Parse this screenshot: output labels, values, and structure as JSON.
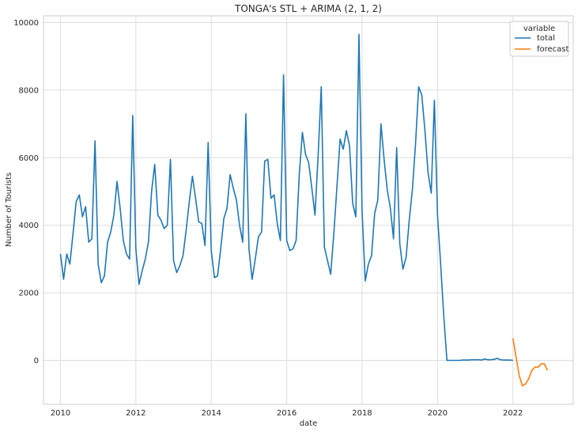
{
  "chart_data": {
    "type": "line",
    "title": "TONGA's STL + ARIMA (2, 1, 2)",
    "xlabel": "date",
    "ylabel": "Number of Tourists",
    "xlim": [
      2009.55,
      2023.6
    ],
    "ylim": [
      -1300,
      10200
    ],
    "x_ticks": [
      "2010",
      "2012",
      "2014",
      "2016",
      "2018",
      "2020",
      "2022"
    ],
    "y_ticks": [
      "0",
      "2000",
      "4000",
      "6000",
      "8000",
      "10000"
    ],
    "grid": true,
    "legend": {
      "title": "variable",
      "placement": "top-right"
    },
    "series": [
      {
        "name": "total",
        "color": "#1f77b4",
        "start": "2010-01",
        "frequency": "monthly",
        "values": [
          3150,
          2400,
          3150,
          2850,
          3750,
          4700,
          4900,
          4250,
          4550,
          3500,
          3600,
          6500,
          2850,
          2300,
          2500,
          3500,
          3800,
          4300,
          5300,
          4500,
          3550,
          3150,
          3000,
          7250,
          3300,
          2250,
          2650,
          3000,
          3500,
          5000,
          5800,
          4300,
          4150,
          3900,
          4000,
          5950,
          2950,
          2600,
          2800,
          3100,
          3850,
          4700,
          5450,
          4800,
          4100,
          4050,
          3400,
          6450,
          3250,
          2450,
          2500,
          3300,
          4200,
          4500,
          5500,
          5100,
          4750,
          4000,
          3500,
          7300,
          3300,
          2400,
          3000,
          3650,
          3800,
          5900,
          5950,
          4800,
          4900,
          4050,
          3550,
          8450,
          3550,
          3250,
          3300,
          3550,
          5500,
          6750,
          6100,
          5850,
          5100,
          4300,
          6050,
          8100,
          3350,
          2950,
          2550,
          3750,
          5150,
          6550,
          6250,
          6800,
          6350,
          4650,
          4250,
          9650,
          4400,
          2350,
          2850,
          3100,
          4350,
          4750,
          7000,
          5950,
          5050,
          4500,
          3600,
          6300,
          3450,
          2700,
          3050,
          4150,
          5050,
          6400,
          8100,
          7850,
          6800,
          5550,
          4950,
          7700,
          4300,
          2850,
          1300,
          0,
          0,
          0,
          0,
          0,
          10,
          10,
          10,
          20,
          20,
          20,
          10,
          40,
          20,
          20,
          30,
          60,
          20,
          10,
          10,
          10,
          0
        ]
      },
      {
        "name": "forecast",
        "color": "#ff7f0e",
        "start": "2022-01",
        "frequency": "monthly",
        "values": [
          650,
          100,
          -450,
          -750,
          -700,
          -550,
          -300,
          -200,
          -200,
          -100,
          -100,
          -300
        ]
      }
    ]
  }
}
